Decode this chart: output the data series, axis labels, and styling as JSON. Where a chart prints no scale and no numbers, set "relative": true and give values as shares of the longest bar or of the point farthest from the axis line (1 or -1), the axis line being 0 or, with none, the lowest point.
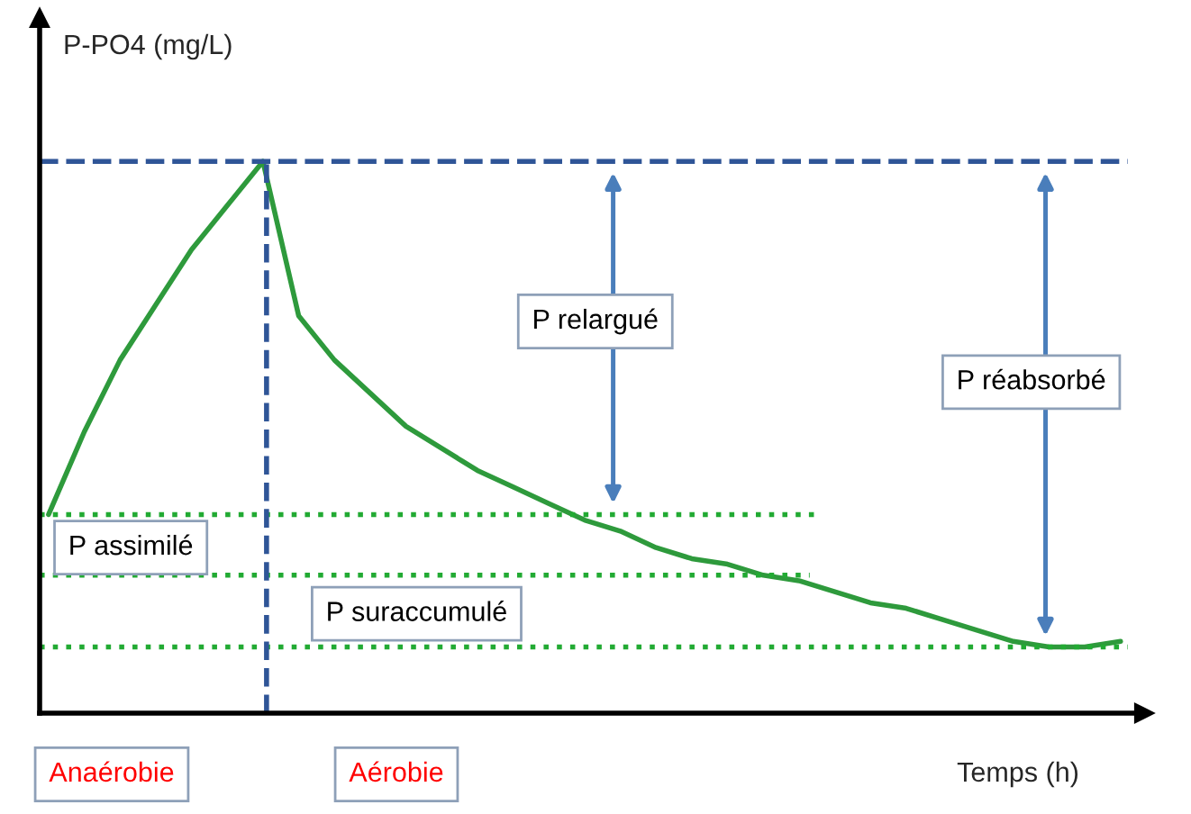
{
  "chart_data": {
    "type": "line",
    "relative": true,
    "xlabel": "Temps (h)",
    "ylabel": "P-PO4 (mg/L)",
    "categories": [
      null,
      null,
      null,
      null,
      null,
      null,
      null,
      null,
      null,
      null,
      null,
      null,
      null,
      null,
      null,
      null,
      null,
      null,
      null,
      null,
      null,
      null,
      null,
      null,
      null,
      null,
      null,
      null,
      null,
      null,
      null
    ],
    "series": [
      {
        "color": "#2e9a3c",
        "values": [
          0.36,
          0.51,
          0.64,
          0.74,
          0.84,
          0.92,
          1.0,
          0.72,
          0.64,
          0.58,
          0.52,
          0.48,
          0.44,
          0.41,
          0.38,
          0.35,
          0.33,
          0.3,
          0.28,
          0.27,
          0.25,
          0.24,
          0.22,
          0.2,
          0.19,
          0.17,
          0.15,
          0.13,
          0.12,
          0.12,
          0.13
        ]
      }
    ],
    "ref_lines": [
      {
        "axis": "y",
        "value": 1.0,
        "color": "#2f5597",
        "line_style": "dashed"
      },
      {
        "axis": "y",
        "value": 0.36,
        "color": "#22aa33",
        "line_style": "dotted"
      },
      {
        "axis": "y",
        "value": 0.25,
        "color": "#22aa33",
        "line_style": "dotted"
      },
      {
        "axis": "y",
        "value": 0.12,
        "color": "#22aa33",
        "line_style": "dotted"
      }
    ],
    "annotations": [
      "P relargué",
      "P réabsorbé",
      "P assimilé",
      "P suraccumulé",
      "Anaérobie",
      "Aérobie"
    ],
    "grid": false,
    "legend": false,
    "marker": "none",
    "line_style": "solid"
  }
}
